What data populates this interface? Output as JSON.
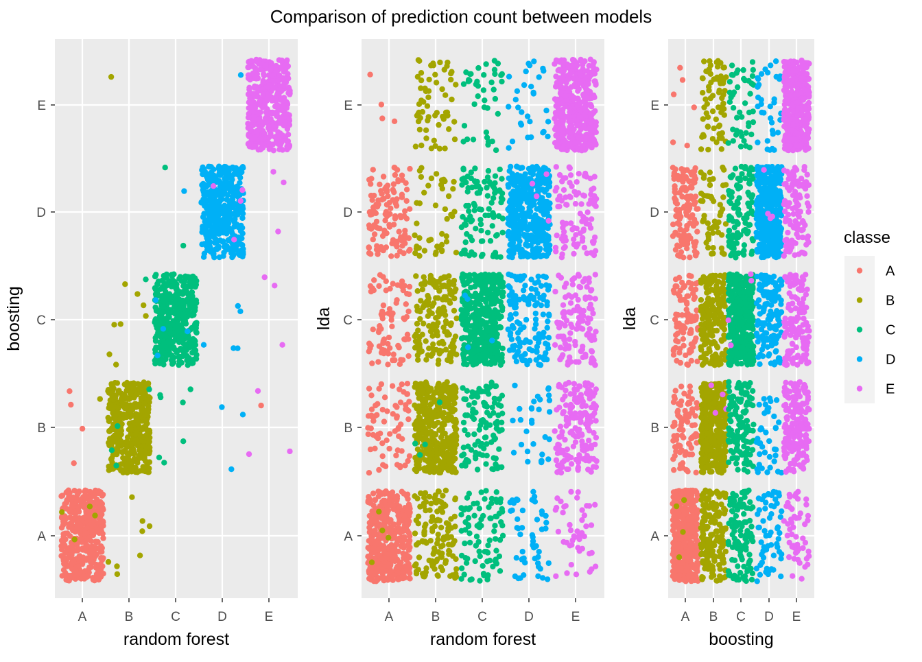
{
  "title": "Comparison of prediction count between models",
  "legend": {
    "title": "classe",
    "placement": "right",
    "items": [
      {
        "key": "A",
        "label": "A",
        "color": "#F8766D"
      },
      {
        "key": "B",
        "label": "B",
        "color": "#A3A500"
      },
      {
        "key": "C",
        "label": "C",
        "color": "#00BF7D"
      },
      {
        "key": "D",
        "label": "D",
        "color": "#00B0F6"
      },
      {
        "key": "E",
        "label": "E",
        "color": "#E76BF3"
      }
    ]
  },
  "chart_data": [
    {
      "type": "scatter",
      "jitter": true,
      "grid": true,
      "xlabel": "random forest",
      "ylabel": "boosting",
      "categories_x": [
        "A",
        "B",
        "C",
        "D",
        "E"
      ],
      "categories_y": [
        "A",
        "B",
        "C",
        "D",
        "E"
      ],
      "cells": [
        {
          "x": "A",
          "y": "A",
          "n": 420,
          "classes": {
            "A": 0.99,
            "B": 0.01
          }
        },
        {
          "x": "B",
          "y": "A",
          "n": 8,
          "classes": {
            "B": 1.0
          }
        },
        {
          "x": "A",
          "y": "B",
          "n": 5,
          "classes": {
            "A": 0.8,
            "B": 0.2
          }
        },
        {
          "x": "B",
          "y": "B",
          "n": 420,
          "classes": {
            "B": 0.99,
            "C": 0.01
          }
        },
        {
          "x": "C",
          "y": "B",
          "n": 7,
          "classes": {
            "C": 1.0
          }
        },
        {
          "x": "D",
          "y": "B",
          "n": 3,
          "classes": {
            "D": 1.0
          }
        },
        {
          "x": "E",
          "y": "B",
          "n": 4,
          "classes": {
            "E": 0.75,
            "A": 0.25
          }
        },
        {
          "x": "B",
          "y": "C",
          "n": 9,
          "classes": {
            "B": 0.9,
            "C": 0.1
          }
        },
        {
          "x": "C",
          "y": "C",
          "n": 420,
          "classes": {
            "C": 0.99,
            "D": 0.01
          }
        },
        {
          "x": "D",
          "y": "C",
          "n": 5,
          "classes": {
            "D": 1.0
          }
        },
        {
          "x": "E",
          "y": "C",
          "n": 3,
          "classes": {
            "E": 1.0
          }
        },
        {
          "x": "C",
          "y": "D",
          "n": 3,
          "classes": {
            "C": 0.7,
            "D": 0.3
          }
        },
        {
          "x": "D",
          "y": "D",
          "n": 420,
          "classes": {
            "D": 0.99,
            "E": 0.01
          }
        },
        {
          "x": "E",
          "y": "D",
          "n": 3,
          "classes": {
            "E": 1.0
          }
        },
        {
          "x": "B",
          "y": "E",
          "n": 1,
          "classes": {
            "B": 1.0
          }
        },
        {
          "x": "D",
          "y": "E",
          "n": 1,
          "classes": {
            "D": 1.0
          }
        },
        {
          "x": "E",
          "y": "E",
          "n": 420,
          "classes": {
            "E": 1.0
          }
        }
      ]
    },
    {
      "type": "scatter",
      "jitter": true,
      "grid": true,
      "xlabel": "random forest",
      "ylabel": "lda",
      "categories_x": [
        "A",
        "B",
        "C",
        "D",
        "E"
      ],
      "categories_y": [
        "A",
        "B",
        "C",
        "D",
        "E"
      ],
      "cells": [
        {
          "x": "A",
          "y": "A",
          "n": 420,
          "classes": {
            "A": 0.99,
            "B": 0.01
          }
        },
        {
          "x": "B",
          "y": "A",
          "n": 130,
          "classes": {
            "B": 1.0
          }
        },
        {
          "x": "C",
          "y": "A",
          "n": 90,
          "classes": {
            "C": 1.0
          }
        },
        {
          "x": "D",
          "y": "A",
          "n": 50,
          "classes": {
            "D": 1.0
          }
        },
        {
          "x": "E",
          "y": "A",
          "n": 45,
          "classes": {
            "E": 1.0
          }
        },
        {
          "x": "A",
          "y": "B",
          "n": 70,
          "classes": {
            "A": 1.0
          }
        },
        {
          "x": "B",
          "y": "B",
          "n": 420,
          "classes": {
            "B": 0.99,
            "C": 0.01
          }
        },
        {
          "x": "C",
          "y": "B",
          "n": 110,
          "classes": {
            "C": 1.0
          }
        },
        {
          "x": "D",
          "y": "B",
          "n": 30,
          "classes": {
            "D": 1.0
          }
        },
        {
          "x": "E",
          "y": "B",
          "n": 170,
          "classes": {
            "E": 1.0
          }
        },
        {
          "x": "A",
          "y": "C",
          "n": 80,
          "classes": {
            "A": 1.0
          }
        },
        {
          "x": "B",
          "y": "C",
          "n": 160,
          "classes": {
            "B": 1.0
          }
        },
        {
          "x": "C",
          "y": "C",
          "n": 420,
          "classes": {
            "C": 0.99,
            "D": 0.01
          }
        },
        {
          "x": "D",
          "y": "C",
          "n": 130,
          "classes": {
            "D": 1.0
          }
        },
        {
          "x": "E",
          "y": "C",
          "n": 120,
          "classes": {
            "E": 1.0
          }
        },
        {
          "x": "A",
          "y": "D",
          "n": 120,
          "classes": {
            "A": 1.0
          }
        },
        {
          "x": "B",
          "y": "D",
          "n": 45,
          "classes": {
            "B": 1.0
          }
        },
        {
          "x": "C",
          "y": "D",
          "n": 100,
          "classes": {
            "C": 1.0
          }
        },
        {
          "x": "D",
          "y": "D",
          "n": 420,
          "classes": {
            "D": 0.99,
            "E": 0.01
          }
        },
        {
          "x": "E",
          "y": "D",
          "n": 100,
          "classes": {
            "E": 1.0
          }
        },
        {
          "x": "A",
          "y": "E",
          "n": 4,
          "classes": {
            "A": 1.0
          }
        },
        {
          "x": "B",
          "y": "E",
          "n": 60,
          "classes": {
            "B": 1.0
          }
        },
        {
          "x": "C",
          "y": "E",
          "n": 40,
          "classes": {
            "C": 1.0
          }
        },
        {
          "x": "D",
          "y": "E",
          "n": 30,
          "classes": {
            "D": 1.0
          }
        },
        {
          "x": "E",
          "y": "E",
          "n": 420,
          "classes": {
            "E": 1.0
          }
        }
      ]
    },
    {
      "type": "scatter",
      "jitter": true,
      "grid": true,
      "xlabel": "boosting",
      "ylabel": "lda",
      "categories_x": [
        "A",
        "B",
        "C",
        "D",
        "E"
      ],
      "categories_y": [
        "A",
        "B",
        "C",
        "D",
        "E"
      ],
      "cells": [
        {
          "x": "A",
          "y": "A",
          "n": 420,
          "classes": {
            "A": 0.99,
            "B": 0.01
          }
        },
        {
          "x": "B",
          "y": "A",
          "n": 180,
          "classes": {
            "B": 1.0
          }
        },
        {
          "x": "C",
          "y": "A",
          "n": 110,
          "classes": {
            "C": 1.0
          }
        },
        {
          "x": "D",
          "y": "A",
          "n": 60,
          "classes": {
            "D": 1.0
          }
        },
        {
          "x": "E",
          "y": "A",
          "n": 50,
          "classes": {
            "E": 1.0
          }
        },
        {
          "x": "A",
          "y": "B",
          "n": 80,
          "classes": {
            "A": 1.0
          }
        },
        {
          "x": "B",
          "y": "B",
          "n": 420,
          "classes": {
            "B": 0.99,
            "E": 0.01
          }
        },
        {
          "x": "C",
          "y": "B",
          "n": 120,
          "classes": {
            "C": 1.0
          }
        },
        {
          "x": "D",
          "y": "B",
          "n": 40,
          "classes": {
            "D": 1.0
          }
        },
        {
          "x": "E",
          "y": "B",
          "n": 180,
          "classes": {
            "E": 1.0
          }
        },
        {
          "x": "A",
          "y": "C",
          "n": 90,
          "classes": {
            "A": 1.0
          }
        },
        {
          "x": "B",
          "y": "C",
          "n": 190,
          "classes": {
            "B": 1.0
          }
        },
        {
          "x": "C",
          "y": "C",
          "n": 420,
          "classes": {
            "C": 0.99,
            "E": 0.01
          }
        },
        {
          "x": "D",
          "y": "C",
          "n": 140,
          "classes": {
            "D": 1.0
          }
        },
        {
          "x": "E",
          "y": "C",
          "n": 130,
          "classes": {
            "E": 1.0
          }
        },
        {
          "x": "A",
          "y": "D",
          "n": 130,
          "classes": {
            "A": 1.0
          }
        },
        {
          "x": "B",
          "y": "D",
          "n": 50,
          "classes": {
            "B": 1.0
          }
        },
        {
          "x": "C",
          "y": "D",
          "n": 110,
          "classes": {
            "C": 1.0
          }
        },
        {
          "x": "D",
          "y": "D",
          "n": 420,
          "classes": {
            "D": 0.99,
            "E": 0.01
          }
        },
        {
          "x": "E",
          "y": "D",
          "n": 110,
          "classes": {
            "E": 1.0
          }
        },
        {
          "x": "A",
          "y": "E",
          "n": 6,
          "classes": {
            "A": 1.0
          }
        },
        {
          "x": "B",
          "y": "E",
          "n": 70,
          "classes": {
            "B": 1.0
          }
        },
        {
          "x": "C",
          "y": "E",
          "n": 45,
          "classes": {
            "C": 1.0
          }
        },
        {
          "x": "D",
          "y": "E",
          "n": 35,
          "classes": {
            "D": 1.0
          }
        },
        {
          "x": "E",
          "y": "E",
          "n": 420,
          "classes": {
            "E": 1.0
          }
        }
      ]
    }
  ]
}
